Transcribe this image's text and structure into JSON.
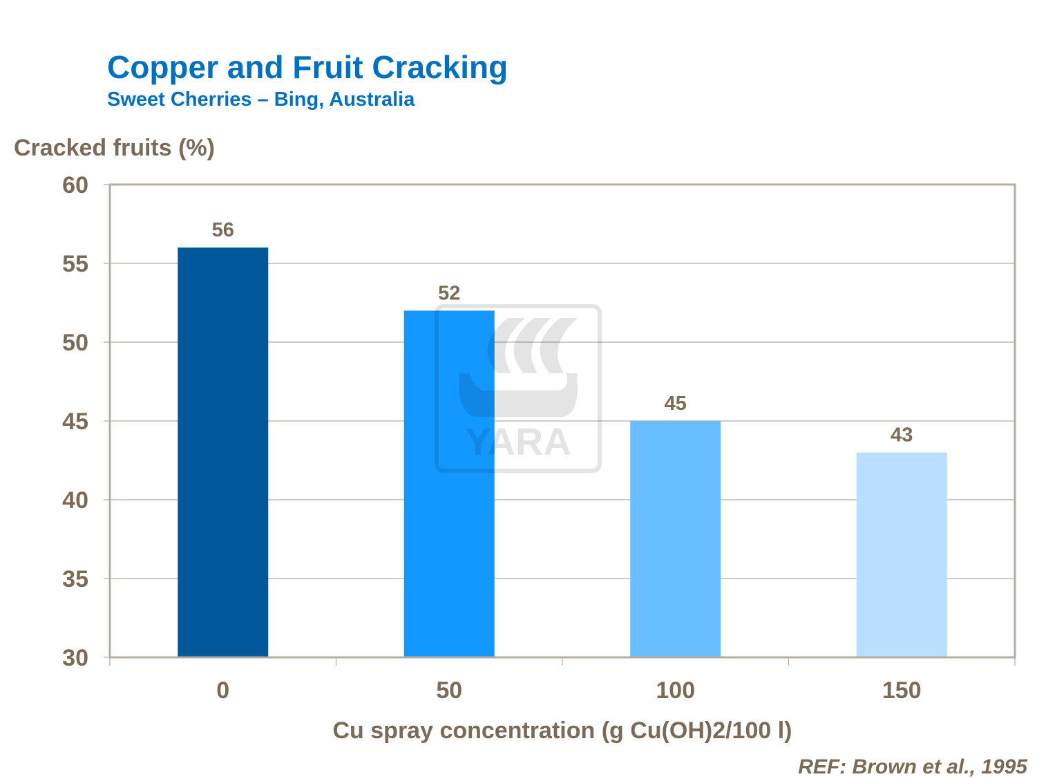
{
  "chart_data": {
    "type": "bar",
    "title": "Copper and Fruit Cracking",
    "subtitle": "Sweet Cherries – Bing, Australia",
    "xlabel": "Cu spray concentration (g Cu(OH)2/100 l)",
    "ylabel": "Cracked fruits (%)",
    "categories": [
      "0",
      "50",
      "100",
      "150"
    ],
    "values": [
      56,
      52,
      45,
      43
    ],
    "colors": [
      "#00579A",
      "#1398FF",
      "#69BEFF",
      "#B9DEFF"
    ],
    "ylim": [
      30,
      60
    ],
    "yticks": [
      30,
      35,
      40,
      45,
      50,
      55,
      60
    ],
    "grid": true,
    "data_labels": true,
    "reference": "REF: Brown et al., 1995",
    "watermark": "YARA"
  }
}
